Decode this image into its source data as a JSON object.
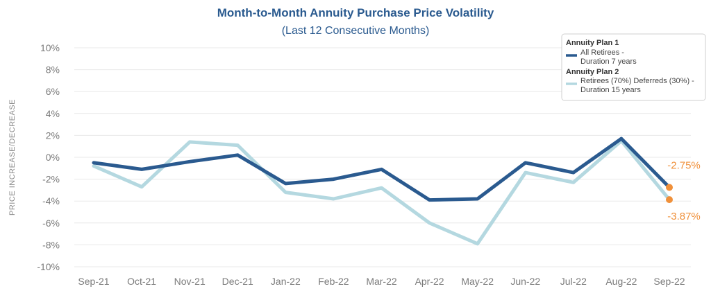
{
  "chart_data": {
    "type": "line",
    "title": "Month-to-Month Annuity Purchase Price Volatility",
    "subtitle": "(Last 12 Consecutive Months)",
    "ylabel": "PRICE INCREASE/DECREASE",
    "xlabel": "",
    "ylim": [
      -10,
      10
    ],
    "yticks": [
      "10%",
      "8%",
      "6%",
      "4%",
      "2%",
      "0%",
      "-2%",
      "-4%",
      "-6%",
      "-8%",
      "-10%"
    ],
    "grid": true,
    "legend_position": "top-right",
    "categories": [
      "Sep-21",
      "Oct-21",
      "Nov-21",
      "Dec-21",
      "Jan-22",
      "Feb-22",
      "Mar-22",
      "Apr-22",
      "May-22",
      "Jun-22",
      "Jul-22",
      "Aug-22",
      "Sep-22"
    ],
    "series": [
      {
        "name": "Annuity Plan 1",
        "legend_lines": [
          "All Retirees -",
          "Duration 7 years"
        ],
        "color": "#2a5a8f",
        "values": [
          -0.5,
          -1.1,
          -0.4,
          0.2,
          -2.4,
          -2.0,
          -1.1,
          -3.9,
          -3.8,
          -0.5,
          -1.4,
          1.7,
          -2.75
        ]
      },
      {
        "name": "Annuity Plan 2",
        "legend_lines": [
          "Retirees (70%) Deferreds (30%) -",
          "Duration 15 years"
        ],
        "color": "#b4d8e0",
        "values": [
          -0.8,
          -2.7,
          1.4,
          1.1,
          -3.2,
          -3.8,
          -2.8,
          -6.0,
          -7.9,
          -1.4,
          -2.3,
          1.5,
          -3.87
        ]
      }
    ],
    "annotations": [
      {
        "series": 0,
        "index": 12,
        "label": "-2.75%",
        "color": "#f0903a"
      },
      {
        "series": 1,
        "index": 12,
        "label": "-3.87%",
        "color": "#f0903a"
      }
    ],
    "colors": {
      "title": "#2a5a8f",
      "grid": "#e8e8e8",
      "tick": "#7a7a7a",
      "marker": "#f0903a"
    }
  }
}
